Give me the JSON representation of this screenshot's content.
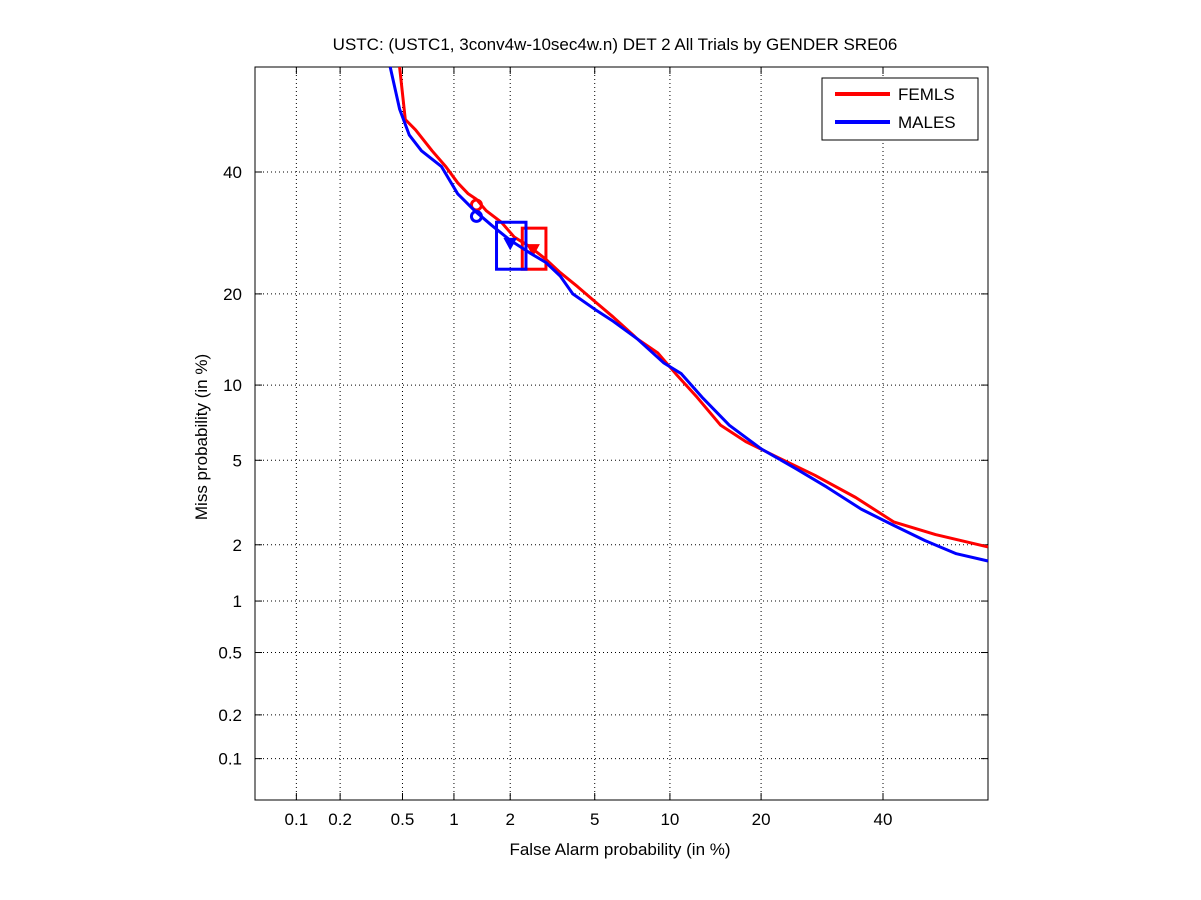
{
  "chart_data": {
    "type": "line",
    "title": "USTC: (USTC1, 3conv4w-10sec4w.n) DET 2 All Trials by GENDER SRE06",
    "xlabel": "False Alarm probability (in %)",
    "ylabel": "Miss probability (in %)",
    "x_scale": "probit",
    "y_scale": "probit",
    "xlim": [
      0.05,
      60
    ],
    "ylim": [
      0.05,
      60
    ],
    "x_ticks": [
      0.1,
      0.2,
      0.5,
      1,
      2,
      5,
      10,
      20,
      40
    ],
    "y_ticks": [
      0.1,
      0.2,
      0.5,
      1,
      2,
      5,
      10,
      20,
      40
    ],
    "x_tick_labels": [
      "0.1",
      "0.2",
      "0.5",
      "1",
      "2",
      "5",
      "10",
      "20",
      "40"
    ],
    "y_tick_labels": [
      "0.1",
      "0.2",
      "0.5",
      "1",
      "2",
      "5",
      "10",
      "20",
      "40"
    ],
    "grid": true,
    "legend_position": "top-right",
    "series": [
      {
        "name": "FEMLS",
        "color": "#ff0000",
        "points": [
          [
            0.48,
            60
          ],
          [
            0.52,
            50
          ],
          [
            0.6,
            48
          ],
          [
            0.75,
            44
          ],
          [
            0.9,
            41
          ],
          [
            1.05,
            38
          ],
          [
            1.2,
            36
          ],
          [
            1.33,
            35
          ],
          [
            1.5,
            33
          ],
          [
            1.8,
            31
          ],
          [
            2.1,
            28.5
          ],
          [
            2.5,
            27
          ],
          [
            3.0,
            25
          ],
          [
            3.5,
            23
          ],
          [
            4.2,
            21
          ],
          [
            5.0,
            19
          ],
          [
            6.0,
            17
          ],
          [
            7.5,
            14.5
          ],
          [
            9.0,
            13
          ],
          [
            10.5,
            11
          ],
          [
            12.5,
            9.0
          ],
          [
            15.0,
            7.0
          ],
          [
            18.0,
            6.0
          ],
          [
            22.0,
            5.2
          ],
          [
            28.0,
            4.3
          ],
          [
            35.0,
            3.4
          ],
          [
            42.0,
            2.6
          ],
          [
            50.0,
            2.25
          ],
          [
            60.0,
            1.95
          ]
        ],
        "min_dcf": [
          1.33,
          34
        ],
        "eer": [
          2.6,
          26.5
        ],
        "confidence_box": {
          "x": [
            2.3,
            3.0
          ],
          "y": [
            23.5,
            30
          ]
        }
      },
      {
        "name": "MALES",
        "color": "#0000ff",
        "points": [
          [
            0.42,
            60
          ],
          [
            0.48,
            52
          ],
          [
            0.55,
            47
          ],
          [
            0.65,
            44
          ],
          [
            0.85,
            41
          ],
          [
            1.05,
            36
          ],
          [
            1.3,
            33
          ],
          [
            1.6,
            30.5
          ],
          [
            2.0,
            28
          ],
          [
            2.5,
            26
          ],
          [
            3.0,
            24.5
          ],
          [
            3.5,
            22.5
          ],
          [
            4.0,
            20
          ],
          [
            5.0,
            18
          ],
          [
            6.0,
            16.5
          ],
          [
            7.5,
            14.5
          ],
          [
            9.5,
            12
          ],
          [
            11.0,
            11
          ],
          [
            13.0,
            9.0
          ],
          [
            16.0,
            7.0
          ],
          [
            20.0,
            5.6
          ],
          [
            25.0,
            4.6
          ],
          [
            30.0,
            3.8
          ],
          [
            36.0,
            3.0
          ],
          [
            42.0,
            2.5
          ],
          [
            48.0,
            2.1
          ],
          [
            54.0,
            1.8
          ],
          [
            60.0,
            1.65
          ]
        ],
        "min_dcf": [
          1.33,
          32
        ],
        "eer": [
          2.0,
          27.5
        ],
        "confidence_box": {
          "x": [
            1.7,
            2.4
          ],
          "y": [
            23.5,
            31
          ]
        }
      }
    ]
  }
}
